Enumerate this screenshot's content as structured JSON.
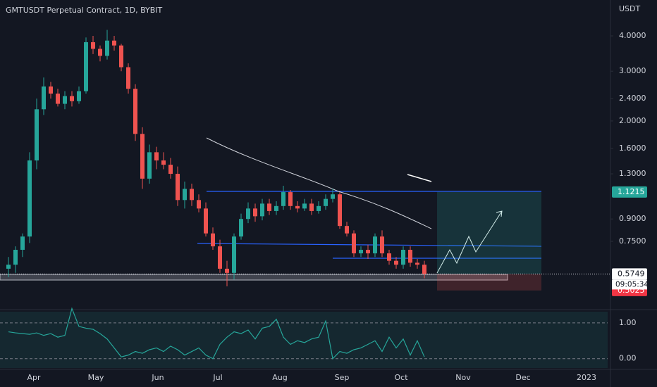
{
  "chart_data": {
    "type": "candlestick",
    "title": "GMTUSDT Perpetual Contract, 1D, BYBIT",
    "y_axis_label": "USDT",
    "log_scale": true,
    "grid": false,
    "up_color": "#26a69a",
    "down_color": "#ef5350",
    "ylim": [
      0.43,
      5.36
    ],
    "yticks": [
      {
        "value": 4,
        "label": "4.0000"
      },
      {
        "value": 3,
        "label": "3.0000"
      },
      {
        "value": 2.4,
        "label": "2.4000"
      },
      {
        "value": 2,
        "label": "2.0000"
      },
      {
        "value": 1.6,
        "label": "1.6000"
      },
      {
        "value": 1.3,
        "label": "1.3000"
      },
      {
        "value": 0.9,
        "label": "0.9000"
      },
      {
        "value": 0.75,
        "label": "0.7500"
      }
    ],
    "price_labels": [
      {
        "value": 1.1215,
        "label": "1.1215",
        "color": "#26a69a"
      },
      {
        "value": 0.5749,
        "label": "0.5749",
        "color": "#ffffff"
      },
      {
        "value": 0.5025,
        "label": "0.5025",
        "color": "#f23645"
      }
    ],
    "countdown": "09:05:34",
    "x_labels": [
      "Apr",
      "May",
      "Jun",
      "Jul",
      "Aug",
      "Sep",
      "Oct",
      "Nov",
      "Dec",
      "2023"
    ],
    "open": [
      0.6,
      0.62,
      0.7,
      0.78,
      1.45,
      2.2,
      2.65,
      2.5,
      2.3,
      2.45,
      2.35,
      2.55,
      3.8,
      3.6,
      3.4,
      3.85,
      3.7,
      3.1,
      2.6,
      1.8,
      1.25,
      1.55,
      1.45,
      1.4,
      1.3,
      1.05,
      1.15,
      1.05,
      0.98,
      0.8,
      0.72,
      0.6,
      0.58,
      0.78,
      0.9,
      0.98,
      0.92,
      1.02,
      0.96,
      1.0,
      1.12,
      1.0,
      0.98,
      1.02,
      0.96,
      1.0,
      1.06,
      1.1,
      0.85,
      0.8,
      0.68,
      0.7,
      0.68,
      0.78,
      0.68,
      0.64,
      0.62,
      0.7,
      0.63,
      0.62
    ],
    "high": [
      0.66,
      0.72,
      0.8,
      1.55,
      2.4,
      2.85,
      2.75,
      2.6,
      2.55,
      2.55,
      2.65,
      3.95,
      4.0,
      3.7,
      4.2,
      4.0,
      3.75,
      3.2,
      2.7,
      1.9,
      1.65,
      1.62,
      1.55,
      1.48,
      1.38,
      1.22,
      1.2,
      1.1,
      1.03,
      0.84,
      0.76,
      0.64,
      0.8,
      0.94,
      1.03,
      1.02,
      1.06,
      1.06,
      1.04,
      1.18,
      1.14,
      1.04,
      1.06,
      1.06,
      1.04,
      1.1,
      1.15,
      1.12,
      0.88,
      0.82,
      0.72,
      0.73,
      0.8,
      0.82,
      0.7,
      0.66,
      0.72,
      0.72,
      0.65,
      0.64
    ],
    "low": [
      0.56,
      0.58,
      0.66,
      0.74,
      1.35,
      2.1,
      2.4,
      2.25,
      2.2,
      2.25,
      2.3,
      2.5,
      3.45,
      3.25,
      3.3,
      3.55,
      3.0,
      2.5,
      1.7,
      1.15,
      1.2,
      1.35,
      1.35,
      1.25,
      1.0,
      0.98,
      1.0,
      0.95,
      0.78,
      0.7,
      0.58,
      0.52,
      0.55,
      0.76,
      0.87,
      0.88,
      0.89,
      0.93,
      0.93,
      0.97,
      0.97,
      0.95,
      0.96,
      0.93,
      0.94,
      0.97,
      1.03,
      0.83,
      0.78,
      0.66,
      0.66,
      0.65,
      0.66,
      0.66,
      0.62,
      0.6,
      0.6,
      0.61,
      0.6,
      0.555
    ],
    "close": [
      0.62,
      0.7,
      0.78,
      1.45,
      2.2,
      2.65,
      2.5,
      2.3,
      2.45,
      2.35,
      2.55,
      3.8,
      3.6,
      3.4,
      3.85,
      3.7,
      3.1,
      2.6,
      1.8,
      1.25,
      1.55,
      1.45,
      1.4,
      1.3,
      1.05,
      1.15,
      1.05,
      0.98,
      0.8,
      0.72,
      0.6,
      0.58,
      0.78,
      0.9,
      0.98,
      0.92,
      1.02,
      0.96,
      1.0,
      1.12,
      1.0,
      0.98,
      1.02,
      0.96,
      1.0,
      1.06,
      1.1,
      0.85,
      0.8,
      0.68,
      0.7,
      0.68,
      0.78,
      0.68,
      0.64,
      0.62,
      0.7,
      0.63,
      0.62,
      0.575
    ],
    "oscillator": {
      "color": "#26a69a",
      "ylim": [
        -0.3,
        1.35
      ],
      "yticks": [
        {
          "value": 1,
          "label": "1.00"
        },
        {
          "value": 0,
          "label": "0.00"
        }
      ],
      "values": [
        0.75,
        0.72,
        0.7,
        0.68,
        0.72,
        0.65,
        0.7,
        0.6,
        0.65,
        1.4,
        0.9,
        0.85,
        0.82,
        0.7,
        0.55,
        0.3,
        0.05,
        0.1,
        0.2,
        0.15,
        0.25,
        0.3,
        0.2,
        0.35,
        0.25,
        0.1,
        0.2,
        0.3,
        0.1,
        0.0,
        0.4,
        0.6,
        0.75,
        0.7,
        0.8,
        0.55,
        0.85,
        0.9,
        1.1,
        0.6,
        0.4,
        0.5,
        0.45,
        0.55,
        0.6,
        1.05,
        0.0,
        0.2,
        0.15,
        0.25,
        0.3,
        0.4,
        0.5,
        0.2,
        0.6,
        0.3,
        0.55,
        0.1,
        0.5,
        0.05
      ]
    }
  }
}
